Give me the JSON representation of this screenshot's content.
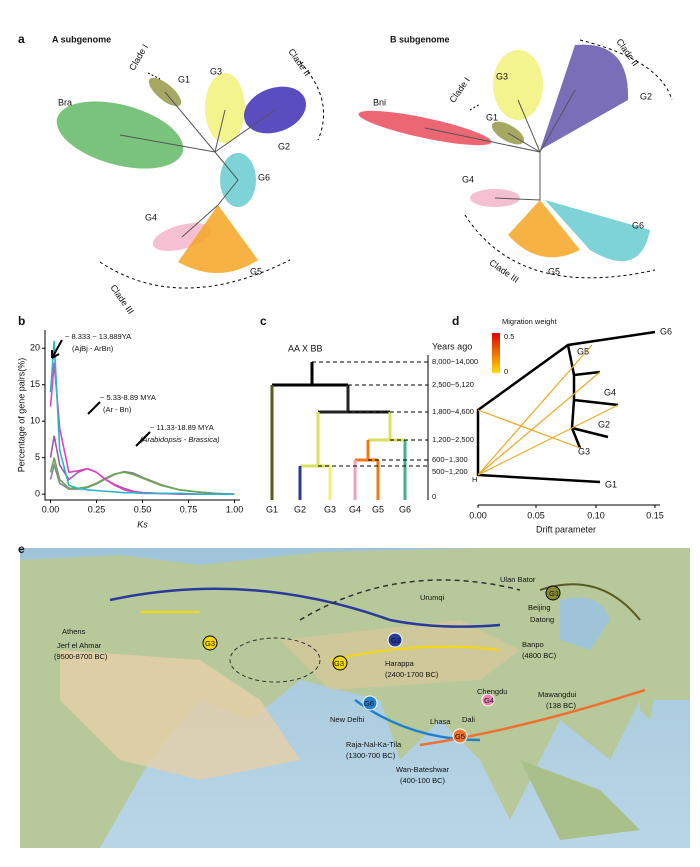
{
  "panels": {
    "a": {
      "label": "a",
      "A": {
        "title": "A subgenome",
        "clade_1": "Clade I",
        "g1": "G1",
        "g3": "G3",
        "clade_2": "Clade II",
        "bra": "Bra",
        "g2": "G2",
        "g6": "G6",
        "g4": "G4",
        "g5": "G5",
        "clade_3": "Clade III"
      },
      "B": {
        "title": "B subgenome",
        "clade_2": "Clade II",
        "g3": "G3",
        "g2": "G2",
        "bni": "Bni",
        "clade_1": "Clade I",
        "g1": "G1",
        "g4": "G4",
        "g6": "G6",
        "g5": "G5",
        "clade_3": "Clade III"
      }
    },
    "b": {
      "label": "b"
    },
    "c": {
      "label": "c",
      "root": "AA X BB",
      "years_title": "Years ago",
      "years": [
        "8,000~14,000",
        "2,500~5,120",
        "1,800~4,600",
        "1,200~2,500",
        "600~1,300",
        "500~1,200",
        "0"
      ],
      "leaves": [
        "G1",
        "G2",
        "G3",
        "G4",
        "G5",
        "G6"
      ]
    },
    "d": {
      "label": "d",
      "legend_title": "Migration weight",
      "legend_max": "0.5",
      "legend_min": "0",
      "nodes": [
        "G6",
        "G5",
        "G4",
        "G2",
        "G3",
        "G1",
        "H"
      ],
      "x_label": "Drift parameter",
      "x_ticks": [
        "0.00",
        "0.05",
        "0.10",
        "0.15"
      ]
    },
    "e": {
      "label": "e",
      "places": [
        "Ulan Bator",
        "Urumqi",
        "G1",
        "Beijing",
        "Datong",
        "Banpo",
        "(4800 BC)",
        "G2",
        "G3",
        "G3",
        "Athens",
        "Jerf el Ahmar",
        "(9500-8700 BC)",
        "Harappa",
        "(2400-1700 BC)",
        "Chengdu",
        "G6",
        "New Delhi",
        "Lhasa",
        "Dali",
        "Mawangdui",
        "(138 BC)",
        "G5",
        "G4",
        "Raja-Nal-Ka-Tila",
        "(1300-700 BC)",
        "Wan-Bateshwar",
        "(400-100 BC)"
      ]
    }
  },
  "chart_data": {
    "type": "line",
    "x_label": "Ks",
    "y_label": "Percentage of gene pairs(%)",
    "annotations": [
      "~ 8.333 ~ 13.889YA",
      "(AjBj - ArBn)",
      "~ 5.33-8.89 MYA",
      "(Ar - Bn)",
      "~ 11.33-18.89 MYA",
      "(Arabidopsis - Brassica)"
    ],
    "x": [
      0,
      0.02,
      0.05,
      0.1,
      0.15,
      0.2,
      0.25,
      0.3,
      0.35,
      0.4,
      0.45,
      0.5,
      0.6,
      0.7,
      0.8,
      0.9,
      1.0
    ],
    "series": [
      {
        "color": "#8d7f9a",
        "values": [
          2,
          4,
          1.5,
          0.7,
          0.7,
          0.9,
          1.4,
          2.1,
          2.7,
          3.1,
          2.9,
          2.3,
          1.3,
          0.6,
          0.3,
          0.1,
          0
        ]
      },
      {
        "color": "#6aa84f",
        "values": [
          3,
          5,
          2,
          0.8,
          0.8,
          1,
          1.5,
          2.2,
          2.8,
          3,
          2.7,
          2.2,
          1.2,
          0.6,
          0.3,
          0.1,
          0
        ]
      },
      {
        "color": "#9b59b6",
        "values": [
          5,
          8,
          4,
          2,
          3,
          3.5,
          3,
          2,
          1.3,
          0.8,
          0.4,
          0.2,
          0.1,
          0,
          0,
          0,
          0
        ]
      },
      {
        "color": "#e040c0",
        "values": [
          12,
          18,
          9,
          3,
          3.2,
          3.5,
          3,
          2,
          1.2,
          0.6,
          0.3,
          0.2,
          0.1,
          0.1,
          0,
          0,
          0
        ]
      },
      {
        "color": "#2bb5c8",
        "values": [
          14,
          21,
          6,
          1.2,
          0.8,
          0.6,
          0.5,
          0.4,
          0.3,
          0.2,
          0.2,
          0.1,
          0.1,
          0.1,
          0,
          0,
          0
        ]
      }
    ],
    "xlim": [
      -0.03,
      1.03
    ],
    "ylim": [
      -0.8,
      22.5
    ],
    "xticks": [
      {
        "value": 0,
        "label": "0.00"
      },
      0.25,
      {
        "value": 0.5,
        "label": "0.50"
      },
      0.75,
      {
        "value": 1,
        "label": "1.00"
      }
    ],
    "yticks": [
      0,
      5,
      10,
      15,
      20
    ]
  }
}
